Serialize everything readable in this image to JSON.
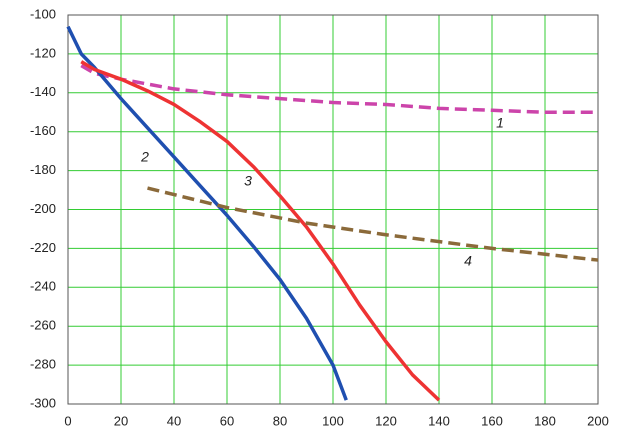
{
  "chart_data": {
    "type": "line",
    "xlim": [
      0,
      200
    ],
    "ylim": [
      -300,
      -100
    ],
    "xticks": [
      0,
      20,
      40,
      60,
      80,
      100,
      120,
      140,
      160,
      180,
      200
    ],
    "yticks": [
      -100,
      -120,
      -140,
      -160,
      -180,
      -200,
      -220,
      -240,
      -260,
      -280,
      -300
    ],
    "grid": true,
    "grid_color": "#33cc33",
    "series": [
      {
        "name": "1",
        "color": "#cc44aa",
        "dash": "dashed",
        "x": [
          5,
          10,
          20,
          40,
          60,
          80,
          100,
          120,
          140,
          160,
          180,
          200
        ],
        "values": [
          -126,
          -130,
          -133,
          -138,
          -141,
          -143,
          -145,
          -146,
          -148,
          -149,
          -150,
          -150
        ]
      },
      {
        "name": "2",
        "color": "#1f4fb0",
        "dash": "solid",
        "x": [
          0,
          5,
          10,
          20,
          30,
          40,
          50,
          60,
          70,
          80,
          90,
          100,
          105
        ],
        "values": [
          -106,
          -120,
          -127,
          -143,
          -158,
          -173,
          -188,
          -203,
          -219,
          -236,
          -256,
          -280,
          -298
        ]
      },
      {
        "name": "3",
        "color": "#ee3333",
        "dash": "solid",
        "x": [
          5,
          10,
          20,
          30,
          40,
          50,
          60,
          70,
          80,
          90,
          100,
          110,
          120,
          130,
          140
        ],
        "values": [
          -124,
          -128,
          -133,
          -139,
          -146,
          -155,
          -165,
          -178,
          -193,
          -209,
          -228,
          -249,
          -268,
          -285,
          -298
        ]
      },
      {
        "name": "4",
        "color": "#8b6a3a",
        "dash": "dashed",
        "x": [
          30,
          60,
          90,
          120,
          160,
          200
        ],
        "values": [
          -189,
          -199,
          -207,
          -213,
          -220,
          -226
        ]
      }
    ]
  }
}
